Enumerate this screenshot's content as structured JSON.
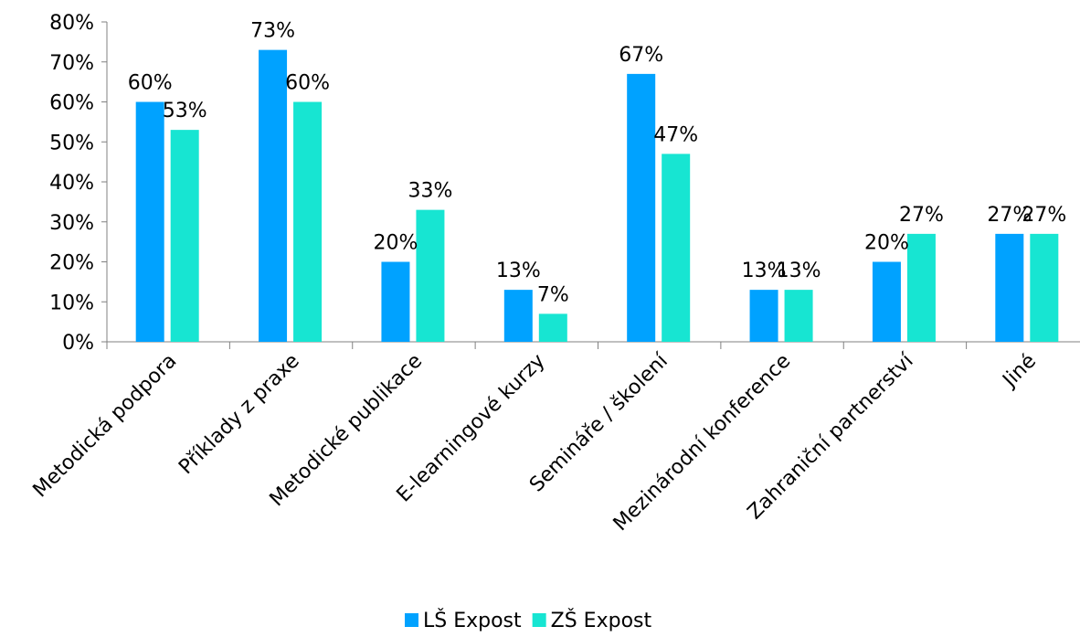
{
  "chart_data": {
    "type": "bar",
    "title": "",
    "xlabel": "",
    "ylabel": "",
    "categories": [
      "Metodická podpora",
      "Příklady z praxe",
      "Metodické publikace",
      "E-learningové kurzy",
      "Semináře / školení",
      "Mezinárodní konference",
      "Zahraniční partnerství",
      "Jiné"
    ],
    "series": [
      {
        "name": "LŠ Expost",
        "color": "#00a2ff",
        "values": [
          60,
          73,
          20,
          13,
          67,
          13,
          20,
          27
        ]
      },
      {
        "name": "ZŠ Expost",
        "color": "#17e5d2",
        "values": [
          53,
          60,
          33,
          7,
          47,
          13,
          27,
          27
        ]
      }
    ],
    "ylim": [
      0,
      80
    ],
    "yticks": [
      "0%",
      "10%",
      "20%",
      "30%",
      "40%",
      "50%",
      "60%",
      "70%",
      "80%"
    ],
    "value_suffix": "%",
    "grid": false,
    "legend_position": "bottom-center"
  }
}
